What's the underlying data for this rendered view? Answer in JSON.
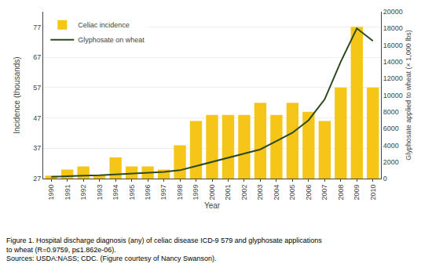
{
  "chart_data": {
    "type": "bar",
    "x": [
      1990,
      1991,
      1992,
      1993,
      1994,
      1995,
      1996,
      1997,
      1998,
      1999,
      2000,
      2001,
      2002,
      2003,
      2004,
      2005,
      2006,
      2007,
      2008,
      2009,
      2010
    ],
    "xlabel": "Year",
    "ylabel": "Incidence (thousands)",
    "y2label": "Glyphosate applied to wheat (× 1,000 lbs)",
    "series": [
      {
        "name": "Celiac incidence",
        "type": "bar",
        "color": "#F5C518",
        "values": [
          28,
          30,
          31,
          28,
          34,
          31,
          31,
          30,
          38,
          46,
          48,
          48,
          48,
          52,
          48,
          52,
          49,
          46,
          57,
          77,
          57
        ]
      },
      {
        "name": "Glyphosate on wheat",
        "type": "line",
        "axis": "y2",
        "color": "#2d4a1e",
        "values": [
          200,
          300,
          350,
          400,
          500,
          600,
          700,
          800,
          1000,
          1500,
          2000,
          2500,
          3000,
          3500,
          4500,
          5500,
          7000,
          9500,
          14000,
          18000,
          16500
        ]
      }
    ],
    "xlim": [
      1989.5,
      2010.5
    ],
    "xticks": [
      1990,
      1991,
      1992,
      1993,
      1994,
      1995,
      1996,
      1997,
      1998,
      1999,
      2000,
      2001,
      2002,
      2003,
      2004,
      2005,
      2006,
      2007,
      2008,
      2009,
      2010
    ],
    "ylim": [
      27,
      82
    ],
    "yticks": [
      27,
      37,
      47,
      57,
      67,
      77
    ],
    "y2lim": [
      0,
      20000
    ],
    "y2ticks": [
      0,
      2000,
      4000,
      6000,
      8000,
      10000,
      12000,
      14000,
      16000,
      18000,
      20000
    ],
    "grid": true,
    "legend": "upper left",
    "annotations": [
      "Figure 1. Hospital discharge diagnosis (any) of celiac disease ICD-9 579 and glyphosate applications to wheat (R=0.9759, p≤1.862e-06).",
      "Sources: USDA:NASS; CDC. (Figure courtesy of Nancy Swanson)."
    ]
  }
}
